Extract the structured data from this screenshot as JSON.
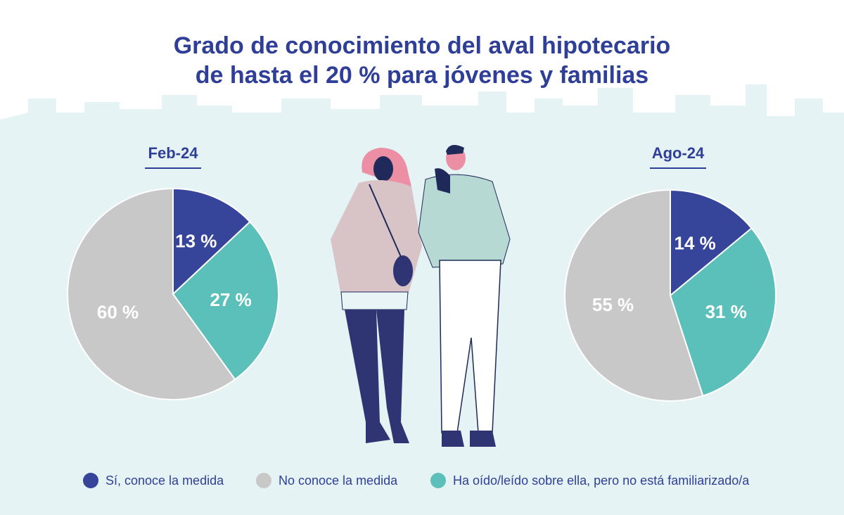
{
  "title_lines": [
    "Grado de conocimiento del aval hipotecario",
    "de hasta el 20 % para jóvenes y familias"
  ],
  "colors": {
    "background_skyline": "#e6f3f5",
    "title": "#2f3f97",
    "yes": "#36449a",
    "no": "#c8c8c8",
    "heard": "#5bbfba",
    "label_text": "#ffffff"
  },
  "chart_data": [
    {
      "type": "pie",
      "title": "Feb-24",
      "categories": [
        "Sí, conoce la medida",
        "Ha oído/leído sobre ella, pero no está familiarizado/a",
        "No conoce la medida"
      ],
      "values": [
        13,
        27,
        60
      ],
      "labels": [
        "13 %",
        "27 %",
        "60 %"
      ],
      "colors": [
        "#36449a",
        "#5bbfba",
        "#c8c8c8"
      ],
      "unit": "%"
    },
    {
      "type": "pie",
      "title": "Ago-24",
      "categories": [
        "Sí, conoce la medida",
        "Ha oído/leído sobre ella, pero no está familiarizado/a",
        "No conoce la medida"
      ],
      "values": [
        14,
        31,
        55
      ],
      "labels": [
        "14 %",
        "31 %",
        "55 %"
      ],
      "colors": [
        "#36449a",
        "#5bbfba",
        "#c8c8c8"
      ],
      "unit": "%"
    }
  ],
  "legend": [
    {
      "label": "Sí, conoce la medida",
      "color": "#36449a"
    },
    {
      "label": "No conoce la medida",
      "color": "#c8c8c8"
    },
    {
      "label": "Ha oído/leído sobre ella, pero no está familiarizado/a",
      "color": "#5bbfba"
    }
  ]
}
